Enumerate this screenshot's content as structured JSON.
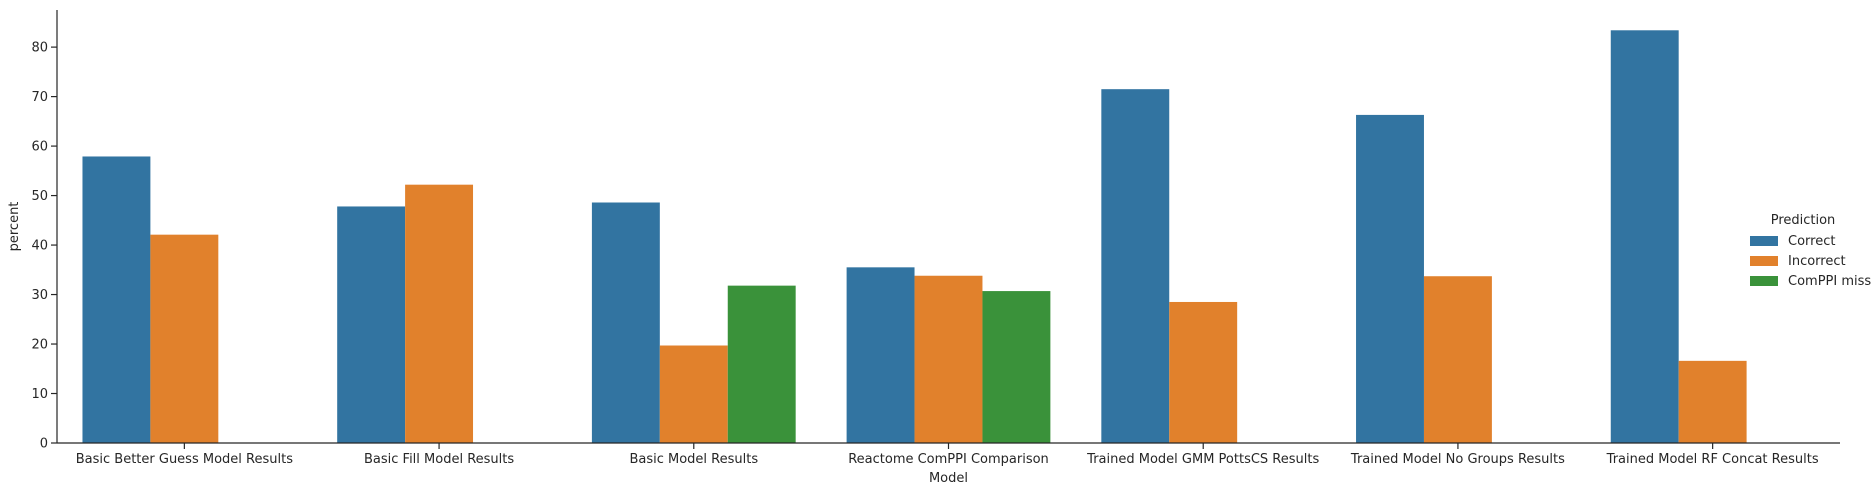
{
  "chart_data": {
    "type": "bar",
    "title": "",
    "xlabel": "Model",
    "ylabel": "percent",
    "ylim": [
      0,
      87.5
    ],
    "yticks": [
      0,
      10,
      20,
      30,
      40,
      50,
      60,
      70,
      80
    ],
    "grid": false,
    "legend": {
      "title": "Prediction",
      "position": "right"
    },
    "categories": [
      "Basic Better Guess Model Results",
      "Basic Fill Model Results",
      "Basic Model Results",
      "Reactome ComPPI Comparison",
      "Trained Model GMM PottsCS Results",
      "Trained Model No Groups Results",
      "Trained Model RF Concat Results"
    ],
    "series": [
      {
        "name": "Correct",
        "color": "#3274a1",
        "values": [
          57.9,
          47.8,
          48.6,
          35.5,
          71.5,
          66.3,
          83.4
        ]
      },
      {
        "name": "Incorrect",
        "color": "#e1812c",
        "values": [
          42.1,
          52.2,
          19.7,
          33.8,
          28.5,
          33.7,
          16.6
        ]
      },
      {
        "name": "ComPPI miss",
        "color": "#3a923a",
        "values": [
          null,
          null,
          31.8,
          30.7,
          null,
          null,
          null
        ]
      }
    ]
  }
}
